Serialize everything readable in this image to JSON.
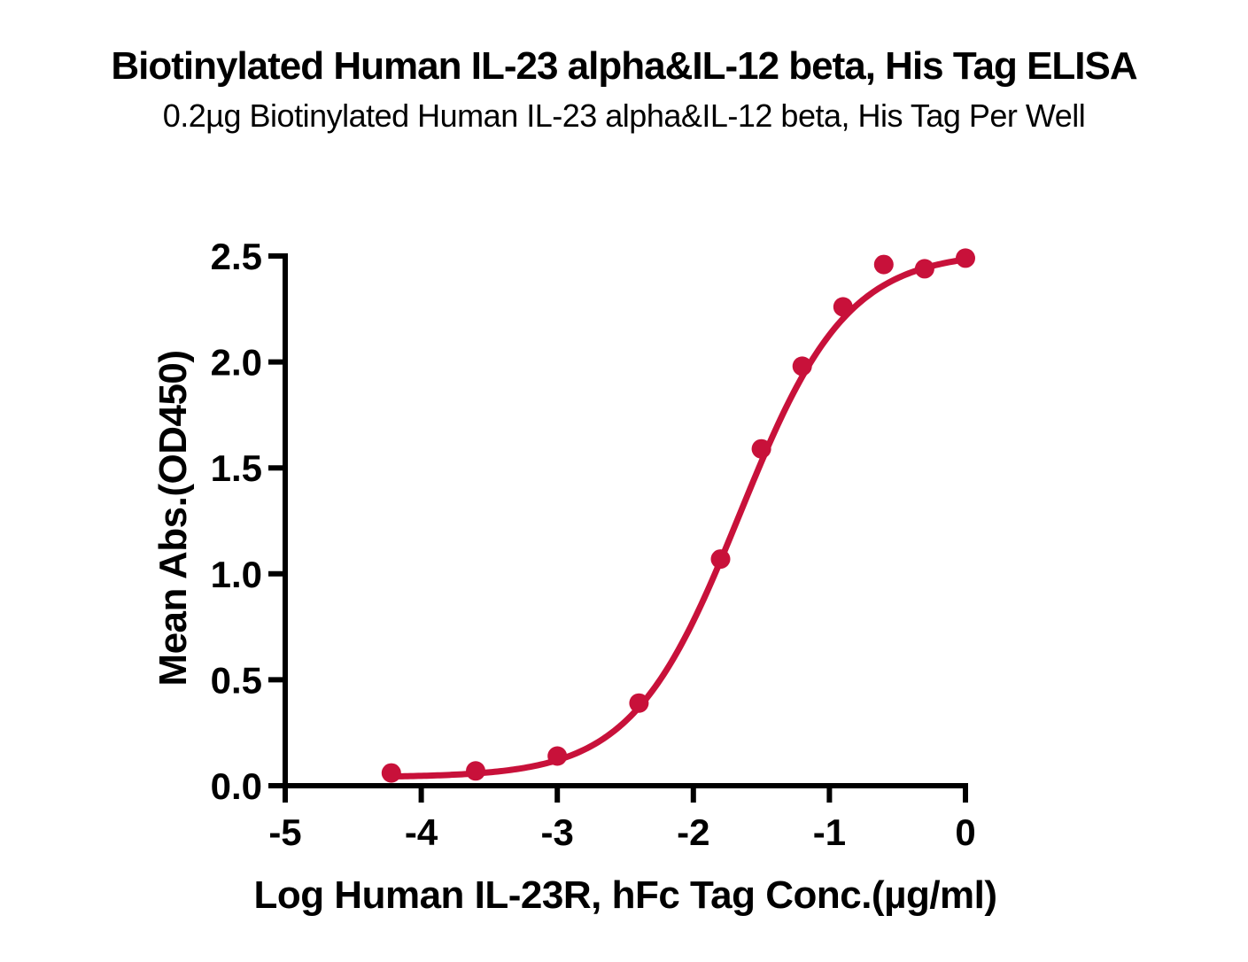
{
  "header": {
    "title": "Biotinylated Human IL-23 alpha&IL-12 beta, His Tag ELISA",
    "subtitle": "0.2µg Biotinylated Human IL-23 alpha&IL-12 beta, His Tag Per Well"
  },
  "chart_data": {
    "type": "scatter",
    "title": "Biotinylated Human IL-23 alpha&IL-12 beta, His Tag ELISA",
    "subtitle": "0.2µg Biotinylated Human IL-23 alpha&IL-12 beta, His Tag Per Well",
    "xlabel": "Log Human IL-23R, hFc Tag Conc.(µg/ml)",
    "ylabel": "Mean Abs.(OD450)",
    "xlim": [
      -5,
      0
    ],
    "ylim": [
      0,
      2.5
    ],
    "x_ticks": [
      -5,
      -4,
      -3,
      -2,
      -1,
      0
    ],
    "x_tick_labels": [
      "-5",
      "-4",
      "-3",
      "-2",
      "-1",
      "0"
    ],
    "y_ticks": [
      0,
      0.5,
      1,
      1.5,
      2,
      2.5
    ],
    "y_tick_labels": [
      "0.0",
      "0.5",
      "1.0",
      "1.5",
      "2.0",
      "2.5"
    ],
    "grid": false,
    "legend": "none",
    "series": [
      {
        "name": "Biotinylated Human IL-23 alpha&IL-12 beta, His Tag",
        "marker": "circle",
        "points": [
          {
            "x": -4.22,
            "y": 0.06
          },
          {
            "x": -3.6,
            "y": 0.07
          },
          {
            "x": -3.0,
            "y": 0.14
          },
          {
            "x": -2.4,
            "y": 0.39
          },
          {
            "x": -1.8,
            "y": 1.07
          },
          {
            "x": -1.5,
            "y": 1.59
          },
          {
            "x": -1.2,
            "y": 1.98
          },
          {
            "x": -0.9,
            "y": 2.26
          },
          {
            "x": -0.6,
            "y": 2.46
          },
          {
            "x": -0.3,
            "y": 2.44
          },
          {
            "x": 0.0,
            "y": 2.49
          }
        ]
      }
    ],
    "fit_curve": {
      "model": "4PL",
      "bottom": 0.04,
      "top": 2.52,
      "logEC50": -1.66,
      "hill": 1.1,
      "x_start": -4.22,
      "x_end": 0
    },
    "colors": {
      "curve": "#C8113A",
      "marker": "#C8113A",
      "axis": "#000000",
      "text": "#000000"
    }
  }
}
